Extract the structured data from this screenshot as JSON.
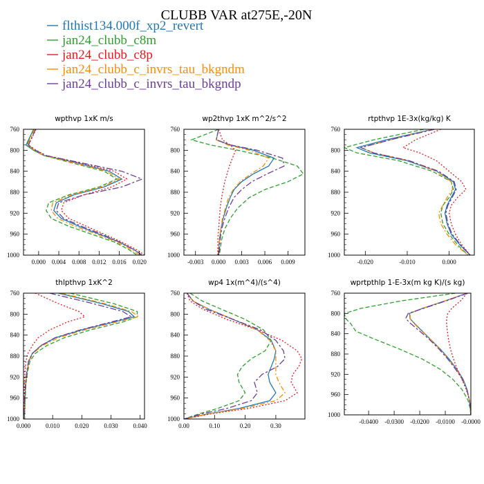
{
  "figure": {
    "title": "CLUBB VAR at275E,-20N"
  },
  "legend": [
    {
      "name": "flthist134.000f_xp2_revert",
      "color": "#1f77b4",
      "dash": "solid"
    },
    {
      "name": "jan24_clubb_c8m",
      "color": "#2ca02c",
      "dash": "dashed"
    },
    {
      "name": "jan24_clubb_c8p",
      "color": "#e31a1c",
      "dash": "dotted"
    },
    {
      "name": "jan24_clubb_c_invrs_tau_bkgndm",
      "color": "#ff8c00",
      "dash": "dashdot"
    },
    {
      "name": "jan24_clubb_c_invrs_tau_bkgndp",
      "color": "#6a3d9a",
      "dash": "longdash"
    }
  ],
  "chart_data": [
    {
      "type": "line",
      "title": "wpthvp  1xK m/s",
      "xlim": [
        -0.003,
        0.021
      ],
      "ylim": [
        760,
        1000
      ],
      "xticks": [
        0.0,
        0.004,
        0.008,
        0.012,
        0.016,
        0.02
      ],
      "xtick_labels": [
        "0.000",
        "0.004",
        "0.008",
        "0.012",
        "0.016",
        "0.020"
      ],
      "yticks": [
        760,
        800,
        840,
        880,
        920,
        960,
        1000
      ],
      "y": [
        760,
        780,
        790,
        800,
        810,
        825,
        840,
        855,
        870,
        885,
        900,
        915,
        930,
        945,
        960,
        975,
        990,
        1000
      ],
      "series": [
        {
          "values": [
            -0.001,
            -0.002,
            -0.0025,
            -0.001,
            0.001,
            0.008,
            0.014,
            0.0165,
            0.013,
            0.007,
            0.0035,
            0.003,
            0.0045,
            0.008,
            0.012,
            0.016,
            0.019,
            0.0205
          ]
        },
        {
          "values": [
            -0.001,
            -0.002,
            -0.0022,
            -0.001,
            0.001,
            0.007,
            0.013,
            0.0155,
            0.012,
            0.006,
            0.002,
            0.0015,
            0.0025,
            0.006,
            0.0105,
            0.015,
            0.018,
            0.0195
          ]
        },
        {
          "values": [
            -0.0005,
            -0.0015,
            -0.002,
            -0.0005,
            0.0015,
            0.0085,
            0.015,
            0.0175,
            0.0145,
            0.009,
            0.005,
            0.0045,
            0.006,
            0.0095,
            0.013,
            0.0165,
            0.0195,
            0.021
          ]
        },
        {
          "values": [
            -0.0008,
            -0.0018,
            -0.0022,
            -0.0008,
            0.001,
            0.0075,
            0.0135,
            0.016,
            0.0125,
            0.0065,
            0.0028,
            0.0025,
            0.0038,
            0.0072,
            0.0115,
            0.0155,
            0.0185,
            0.02
          ]
        },
        {
          "values": [
            -0.0006,
            -0.0016,
            -0.002,
            -0.0006,
            0.0014,
            0.009,
            0.0165,
            0.0205,
            0.0165,
            0.009,
            0.004,
            0.0035,
            0.005,
            0.0085,
            0.0125,
            0.016,
            0.019,
            0.0205
          ]
        }
      ]
    },
    {
      "type": "line",
      "title": "wp2thvp  1xK m^2/s^2",
      "xlim": [
        -0.0045,
        0.0112
      ],
      "ylim": [
        760,
        1000
      ],
      "xticks": [
        -0.003,
        0.0,
        0.003,
        0.006,
        0.009
      ],
      "xtick_labels": [
        "-0.003",
        "0.000",
        "0.003",
        "0.006",
        "0.009"
      ],
      "yticks": [
        760,
        800,
        840,
        880,
        920,
        960,
        1000
      ],
      "y": [
        760,
        780,
        790,
        800,
        815,
        830,
        845,
        860,
        875,
        890,
        910,
        930,
        950,
        970,
        990,
        1000
      ],
      "series": [
        {
          "values": [
            0.0,
            -0.0003,
            0.0015,
            0.0045,
            0.0072,
            0.0065,
            0.0045,
            0.003,
            0.002,
            0.0015,
            0.001,
            0.0006,
            0.0003,
            0.0001,
            0.0,
            0.0
          ]
        },
        {
          "values": [
            0.0,
            -0.0035,
            -0.001,
            0.0025,
            0.007,
            0.0102,
            0.011,
            0.009,
            0.006,
            0.004,
            0.0025,
            0.0015,
            0.0008,
            0.0004,
            0.0002,
            0.0001
          ]
        },
        {
          "values": [
            0.0,
            0.0005,
            0.0015,
            0.0022,
            0.0018,
            0.0014,
            0.0011,
            0.0008,
            0.0006,
            0.0004,
            0.0002,
            0.0001,
            0.0,
            -0.0001,
            -0.0001,
            -0.0001
          ]
        },
        {
          "values": [
            0.0,
            -0.0003,
            0.0012,
            0.004,
            0.0065,
            0.0058,
            0.0042,
            0.0028,
            0.0019,
            0.0013,
            0.0009,
            0.0005,
            0.0003,
            0.0001,
            0.0,
            0.0
          ]
        },
        {
          "values": [
            0.0,
            -0.0003,
            0.0016,
            0.005,
            0.0083,
            0.0085,
            0.0063,
            0.0043,
            0.003,
            0.002,
            0.0013,
            0.0008,
            0.0004,
            0.0002,
            0.0001,
            0.0
          ]
        }
      ]
    },
    {
      "type": "line",
      "title": "rtpthvp  1E-3x(kg/kg) K",
      "xlim": [
        -0.025,
        0.006
      ],
      "ylim": [
        760,
        1000
      ],
      "xticks": [
        -0.02,
        -0.01,
        0.0
      ],
      "xtick_labels": [
        "-0.020",
        "-0.010",
        "0.000"
      ],
      "yticks": [
        760,
        800,
        840,
        880,
        920,
        960,
        1000
      ],
      "y": [
        760,
        780,
        795,
        805,
        820,
        840,
        860,
        875,
        890,
        905,
        920,
        940,
        960,
        980,
        1000
      ],
      "series": [
        {
          "values": [
            -0.004,
            -0.015,
            -0.022,
            -0.019,
            -0.01,
            -0.003,
            0.001,
            0.0015,
            0.0005,
            -0.0005,
            -0.001,
            -0.0005,
            0.0005,
            0.0025,
            0.005
          ]
        },
        {
          "values": [
            -0.006,
            -0.018,
            -0.025,
            -0.022,
            -0.012,
            -0.004,
            0.0005,
            0.001,
            0.0,
            -0.0015,
            -0.002,
            -0.0015,
            0.0,
            0.002,
            0.0045
          ]
        },
        {
          "values": [
            -0.002,
            -0.008,
            -0.011,
            -0.007,
            -0.003,
            0.0,
            0.003,
            0.004,
            0.002,
            0.0005,
            0.0,
            0.0005,
            0.0015,
            0.003,
            0.005
          ]
        },
        {
          "values": [
            -0.004,
            -0.014,
            -0.021,
            -0.018,
            -0.0095,
            -0.003,
            0.0005,
            0.0008,
            -0.0005,
            -0.0015,
            -0.0025,
            -0.002,
            -0.0005,
            0.0015,
            0.0045
          ]
        },
        {
          "values": [
            -0.0035,
            -0.014,
            -0.021,
            -0.018,
            -0.0095,
            -0.0025,
            0.0012,
            0.0017,
            0.0007,
            -0.0003,
            -0.0008,
            -0.0003,
            0.0007,
            0.0027,
            0.005
          ]
        }
      ]
    },
    {
      "type": "line",
      "title": "thlpthvp  1xK^2",
      "xlim": [
        0.0,
        0.0415
      ],
      "ylim": [
        760,
        1000
      ],
      "xticks": [
        0.0,
        0.01,
        0.02,
        0.03,
        0.04
      ],
      "xtick_labels": [
        "0.000",
        "0.010",
        "0.020",
        "0.030",
        "0.040"
      ],
      "yticks": [
        760,
        800,
        840,
        880,
        920,
        960,
        1000
      ],
      "y": [
        760,
        780,
        795,
        805,
        815,
        830,
        845,
        860,
        875,
        890,
        910,
        930,
        960,
        990,
        1000
      ],
      "series": [
        {
          "values": [
            0.012,
            0.027,
            0.036,
            0.038,
            0.031,
            0.02,
            0.011,
            0.006,
            0.003,
            0.0018,
            0.0012,
            0.0008,
            0.0005,
            0.0003,
            0.0003
          ]
        },
        {
          "values": [
            0.016,
            0.031,
            0.039,
            0.039,
            0.034,
            0.023,
            0.014,
            0.008,
            0.004,
            0.0022,
            0.0014,
            0.0009,
            0.0006,
            0.0004,
            0.0004
          ]
        },
        {
          "values": [
            0.004,
            0.012,
            0.019,
            0.021,
            0.015,
            0.009,
            0.005,
            0.003,
            0.0015,
            0.0008,
            0.0005,
            0.0003,
            0.0002,
            0.0001,
            0.0001
          ]
        },
        {
          "values": [
            0.013,
            0.028,
            0.037,
            0.0395,
            0.032,
            0.021,
            0.012,
            0.0065,
            0.0032,
            0.0019,
            0.0012,
            0.0008,
            0.0005,
            0.0003,
            0.0003
          ]
        },
        {
          "values": [
            0.009,
            0.024,
            0.034,
            0.037,
            0.03,
            0.0195,
            0.0108,
            0.006,
            0.003,
            0.0017,
            0.0011,
            0.0007,
            0.0004,
            0.0002,
            0.0002
          ]
        }
      ]
    },
    {
      "type": "line",
      "title": "wp4  1x(m^4)/(s^4)",
      "xlim": [
        0.0,
        0.395
      ],
      "ylim": [
        760,
        1000
      ],
      "xticks": [
        0.0,
        0.1,
        0.2,
        0.3
      ],
      "xtick_labels": [
        "0.00",
        "0.10",
        "0.20",
        "0.30"
      ],
      "yticks": [
        760,
        800,
        840,
        880,
        920,
        960,
        1000
      ],
      "y": [
        760,
        775,
        790,
        810,
        830,
        850,
        870,
        885,
        900,
        915,
        930,
        950,
        965,
        980,
        990,
        1000
      ],
      "series": [
        {
          "values": [
            0.01,
            0.03,
            0.08,
            0.16,
            0.24,
            0.285,
            0.3,
            0.295,
            0.285,
            0.275,
            0.28,
            0.3,
            0.28,
            0.18,
            0.08,
            0.0
          ]
        },
        {
          "values": [
            0.02,
            0.06,
            0.12,
            0.2,
            0.26,
            0.285,
            0.265,
            0.22,
            0.19,
            0.175,
            0.18,
            0.2,
            0.18,
            0.11,
            0.05,
            0.0
          ]
        },
        {
          "values": [
            0.01,
            0.02,
            0.06,
            0.14,
            0.24,
            0.32,
            0.37,
            0.385,
            0.375,
            0.355,
            0.35,
            0.37,
            0.33,
            0.21,
            0.09,
            0.0
          ]
        },
        {
          "values": [
            0.01,
            0.03,
            0.08,
            0.16,
            0.24,
            0.28,
            0.3,
            0.3,
            0.3,
            0.3,
            0.31,
            0.33,
            0.3,
            0.19,
            0.08,
            0.0
          ]
        },
        {
          "values": [
            0.01,
            0.03,
            0.07,
            0.16,
            0.25,
            0.3,
            0.325,
            0.33,
            0.305,
            0.255,
            0.23,
            0.24,
            0.22,
            0.14,
            0.06,
            0.0
          ]
        }
      ]
    },
    {
      "type": "line",
      "title": "wprtpthlp  1-E-3x(m kg K)/(s kg)",
      "xlim": [
        -0.0495,
        0.0
      ],
      "ylim": [
        760,
        1000
      ],
      "xticks": [
        -0.04,
        -0.03,
        -0.02,
        -0.01,
        0.0
      ],
      "xtick_labels": [
        "-0.0400",
        "-0.0300",
        "-0.0200",
        "-0.0100",
        "-0.0000"
      ],
      "yticks": [
        760,
        800,
        840,
        880,
        920,
        960,
        1000
      ],
      "y": [
        760,
        775,
        790,
        800,
        810,
        820,
        835,
        850,
        870,
        890,
        910,
        930,
        950,
        970,
        985,
        1000
      ],
      "series": [
        {
          "values": [
            -0.0015,
            -0.01,
            -0.019,
            -0.024,
            -0.0238,
            -0.022,
            -0.019,
            -0.016,
            -0.012,
            -0.0085,
            -0.0055,
            -0.003,
            -0.0015,
            -0.0006,
            -0.0002,
            0.0
          ]
        },
        {
          "values": [
            -0.006,
            -0.027,
            -0.043,
            -0.0495,
            -0.049,
            -0.047,
            -0.045,
            -0.038,
            -0.028,
            -0.019,
            -0.012,
            -0.007,
            -0.0035,
            -0.0012,
            -0.0004,
            0.0
          ]
        },
        {
          "values": [
            -0.0015,
            -0.004,
            -0.0075,
            -0.009,
            -0.0095,
            -0.0095,
            -0.0092,
            -0.0088,
            -0.008,
            -0.0068,
            -0.0053,
            -0.0035,
            -0.0018,
            -0.0006,
            -0.0002,
            0.0
          ]
        },
        {
          "values": [
            -0.0015,
            -0.01,
            -0.019,
            -0.0238,
            -0.0237,
            -0.0222,
            -0.0192,
            -0.016,
            -0.0122,
            -0.0088,
            -0.0058,
            -0.0032,
            -0.0016,
            -0.0006,
            -0.0002,
            0.0
          ]
        },
        {
          "values": [
            -0.0012,
            -0.0095,
            -0.0185,
            -0.0245,
            -0.0255,
            -0.0235,
            -0.02,
            -0.0165,
            -0.0125,
            -0.009,
            -0.006,
            -0.0033,
            -0.0016,
            -0.0006,
            -0.0002,
            0.0
          ]
        }
      ]
    }
  ]
}
